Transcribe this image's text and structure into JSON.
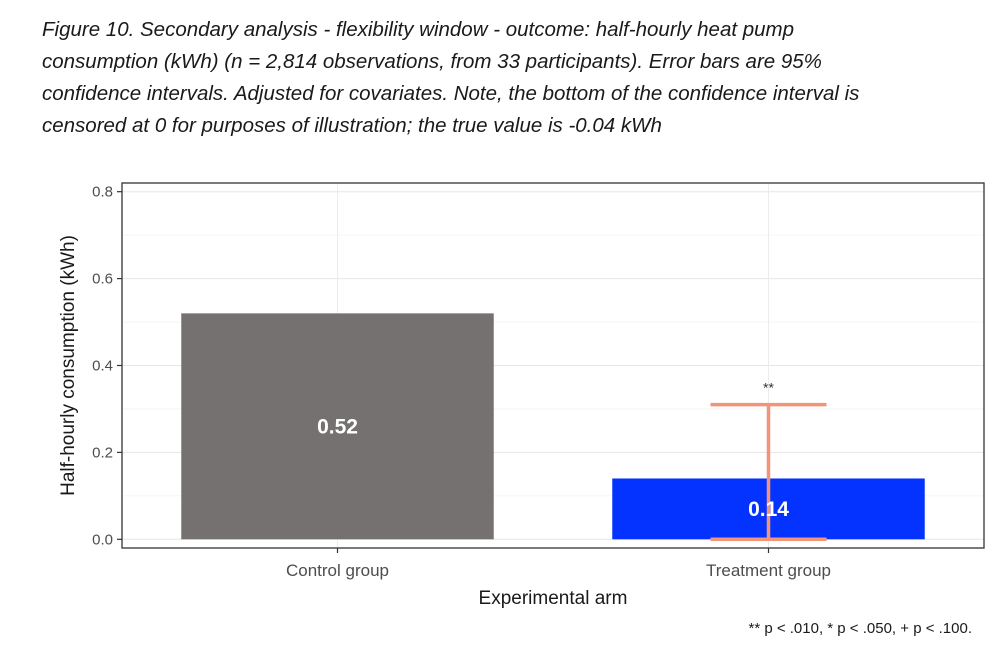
{
  "caption": {
    "lines": [
      "Figure 10. Secondary analysis - flexibility window - outcome: half-hourly heat pump",
      "consumption (kWh) (n = 2,814 observations, from 33 participants). Error bars are 95%",
      "confidence intervals. Adjusted for covariates. Note, the bottom of the confidence interval is",
      "censored at 0 for purposes of illustration; the true value is -0.04 kWh"
    ]
  },
  "chart_data": {
    "type": "bar",
    "categories": [
      "Control group",
      "Treatment group"
    ],
    "values": [
      0.52,
      0.14
    ],
    "data_labels": [
      "0.52",
      "0.14"
    ],
    "bar_colors": [
      "#757170",
      "#0433ff"
    ],
    "error_bars": [
      null,
      {
        "lower": 0.0,
        "upper": 0.31,
        "color": "#f0957a"
      }
    ],
    "significance": [
      "",
      "**"
    ],
    "xlabel": "Experimental arm",
    "ylabel": "Half-hourly consumption (kWh)",
    "ylim": [
      -0.02,
      0.82
    ],
    "yticks": [
      0.0,
      0.2,
      0.4,
      0.6,
      0.8
    ],
    "ytick_labels": [
      "0.0",
      "0.2",
      "0.4",
      "0.6",
      "0.8"
    ],
    "grid": true,
    "legend": "none"
  },
  "footnote": "** p < .010, * p < .050, + p < .100."
}
